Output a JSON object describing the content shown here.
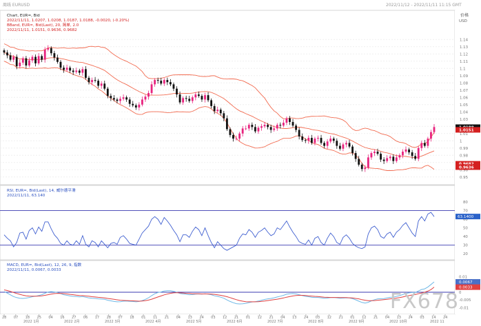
{
  "header": {
    "left_title": "周线 EURUSD",
    "right_title": "2022/11/12 - 2022/11/11 11:15 GMT"
  },
  "chart_data": [
    {
      "type": "candlestick",
      "panel": "price",
      "title_line": "Chart, EUR=, Bid",
      "ohlc_line": "2022/11/11, 1.0207, 1.0208, 1.0187, 1.0188, -0.0020, (-0.20%)",
      "indicator_line": "BBand, EUR=, Bid(Last), 20, 简单, 2.0",
      "indicator_values_line": "2022/11/11, 1.0151, 0.9636, 0.9682",
      "axis_label": "价格",
      "axis_unit": "USD",
      "y_ticks": [
        "1.14",
        "1.13",
        "1.12",
        "1.11",
        "1.1",
        "1.09",
        "1.08",
        "1.07",
        "1.06",
        "1.05",
        "1.04",
        "1.03",
        "1.02",
        "1.01",
        "1",
        "0.99",
        "0.98",
        "0.97",
        "0.96",
        "0.95"
      ],
      "ylim": [
        0.945,
        1.145
      ],
      "price_badges": [
        {
          "label": "1.0188",
          "value": 1.0188,
          "color": "#111111"
        },
        {
          "label": "1.0151",
          "value": 1.0151,
          "color": "#d42020"
        },
        {
          "label": "0.9682",
          "value": 0.9682,
          "color": "#d42020"
        },
        {
          "label": "0.9636",
          "value": 0.9636,
          "color": "#d42020"
        }
      ],
      "close": [
        1.122,
        1.118,
        1.112,
        1.116,
        1.103,
        1.108,
        1.114,
        1.104,
        1.111,
        1.116,
        1.107,
        1.117,
        1.112,
        1.126,
        1.128,
        1.121,
        1.115,
        1.109,
        1.101,
        1.098,
        1.101,
        1.097,
        1.095,
        1.097,
        1.094,
        1.099,
        1.087,
        1.081,
        1.084,
        1.083,
        1.076,
        1.079,
        1.072,
        1.062,
        1.059,
        1.057,
        1.055,
        1.058,
        1.06,
        1.057,
        1.051,
        1.049,
        1.046,
        1.05,
        1.057,
        1.061,
        1.066,
        1.078,
        1.084,
        1.083,
        1.079,
        1.084,
        1.081,
        1.078,
        1.072,
        1.064,
        1.053,
        1.059,
        1.058,
        1.055,
        1.06,
        1.064,
        1.062,
        1.057,
        1.063,
        1.056,
        1.048,
        1.041,
        1.043,
        1.038,
        1.031,
        1.016,
        1.008,
        1.003,
        1.003,
        1.01,
        1.017,
        1.017,
        1.022,
        1.019,
        1.013,
        1.018,
        1.02,
        1.022,
        1.019,
        1.015,
        1.017,
        1.022,
        1.021,
        1.025,
        1.031,
        1.026,
        1.021,
        1.015,
        1.006,
        1.001,
        1.0,
        1.004,
        0.997,
        1.003,
        1.004,
        0.997,
        0.993,
        0.999,
        1.003,
        1.0,
        0.993,
        0.989,
        0.995,
        0.997,
        0.992,
        0.983,
        0.975,
        0.967,
        0.961,
        0.963,
        0.977,
        0.983,
        0.985,
        0.982,
        0.974,
        0.972,
        0.976,
        0.978,
        0.972,
        0.977,
        0.98,
        0.985,
        0.988,
        0.984,
        0.979,
        0.975,
        0.99,
        0.997,
        0.993,
        1.003,
        1.012,
        1.019
      ]
    },
    {
      "type": "line",
      "panel": "rsi",
      "title_line": "RSI, EUR=, Bid(Last), 14, 威尔德平滑",
      "value_line": "2022/11/11, 63.140",
      "y_ticks": [
        "80",
        "70",
        "60",
        "50",
        "40",
        "30",
        "20"
      ],
      "levels": [
        70,
        30
      ],
      "ylim": [
        17,
        84
      ],
      "badge": {
        "label": "63.1400",
        "value": 63.14
      },
      "values": [
        42,
        38,
        35,
        28,
        33,
        44,
        45,
        37,
        47,
        50,
        43,
        51,
        46,
        57,
        57,
        49,
        42,
        38,
        32,
        30,
        35,
        31,
        30,
        35,
        31,
        41,
        31,
        28,
        35,
        33,
        28,
        35,
        31,
        27,
        32,
        33,
        31,
        39,
        41,
        37,
        32,
        31,
        30,
        37,
        44,
        48,
        52,
        60,
        63,
        60,
        54,
        62,
        58,
        53,
        47,
        42,
        34,
        42,
        42,
        39,
        46,
        51,
        48,
        41,
        50,
        41,
        33,
        27,
        34,
        30,
        26,
        24,
        26,
        28,
        30,
        38,
        43,
        42,
        48,
        45,
        39,
        45,
        47,
        50,
        45,
        41,
        43,
        50,
        48,
        53,
        58,
        51,
        45,
        40,
        34,
        32,
        31,
        36,
        30,
        38,
        40,
        33,
        30,
        38,
        44,
        40,
        33,
        31,
        39,
        42,
        38,
        32,
        29,
        27,
        26,
        28,
        43,
        50,
        52,
        48,
        40,
        38,
        43,
        45,
        39,
        45,
        48,
        53,
        56,
        50,
        44,
        40,
        58,
        63,
        58,
        66,
        68,
        63
      ]
    },
    {
      "type": "line",
      "panel": "macd",
      "title_line": "MACD, EUR=, Bid(Last), 12, 26, 9, 指数",
      "value_line": "2022/11/11, 0.0067, 0.0033",
      "y_ticks": [
        "0.01",
        "0.005",
        "0",
        "-0.005",
        "-0.01"
      ],
      "ylim": [
        -0.0125,
        0.0125
      ],
      "badges": [
        {
          "label": "0.0067",
          "value": 0.0067,
          "color": "#4a70c8"
        },
        {
          "label": "0.0033",
          "value": 0.0033,
          "color": "#e04040"
        }
      ],
      "series": [
        {
          "name": "MACD",
          "color": "#6fb8e6",
          "values": [
            0.0004,
            -0.0006,
            -0.0017,
            -0.0028,
            -0.0035,
            -0.0039,
            -0.004,
            -0.0038,
            -0.0034,
            -0.0029,
            -0.0026,
            -0.0021,
            -0.0016,
            -0.0007,
            0.0002,
            0.0004,
            0.0002,
            -0.0002,
            -0.0009,
            -0.0016,
            -0.002,
            -0.0024,
            -0.0027,
            -0.0028,
            -0.003,
            -0.0028,
            -0.0032,
            -0.0037,
            -0.0039,
            -0.004,
            -0.0043,
            -0.0044,
            -0.0046,
            -0.0052,
            -0.0056,
            -0.006,
            -0.0062,
            -0.0061,
            -0.0058,
            -0.0057,
            -0.0059,
            -0.006,
            -0.0062,
            -0.006,
            -0.0054,
            -0.0046,
            -0.0036,
            -0.0022,
            -0.001,
            -0.0002,
            0.0002,
            0.0008,
            0.001,
            0.001,
            0.0006,
            0.0,
            -0.0008,
            -0.0011,
            -0.0013,
            -0.0016,
            -0.0015,
            -0.0012,
            -0.0011,
            -0.0012,
            -0.001,
            -0.0012,
            -0.0016,
            -0.0023,
            -0.0027,
            -0.0032,
            -0.0039,
            -0.005,
            -0.006,
            -0.0068,
            -0.0074,
            -0.0076,
            -0.0075,
            -0.0072,
            -0.0067,
            -0.0063,
            -0.0061,
            -0.0057,
            -0.0052,
            -0.0047,
            -0.0043,
            -0.004,
            -0.0036,
            -0.0031,
            -0.0026,
            -0.002,
            -0.0013,
            -0.001,
            -0.0009,
            -0.0011,
            -0.0016,
            -0.0022,
            -0.0027,
            -0.0029,
            -0.0033,
            -0.0034,
            -0.0034,
            -0.0036,
            -0.0039,
            -0.0038,
            -0.0035,
            -0.0034,
            -0.0036,
            -0.0039,
            -0.0038,
            -0.0036,
            -0.0037,
            -0.0042,
            -0.0049,
            -0.0058,
            -0.0066,
            -0.007,
            -0.0065,
            -0.0056,
            -0.0048,
            -0.0043,
            -0.0042,
            -0.0041,
            -0.0037,
            -0.0033,
            -0.0032,
            -0.0027,
            -0.0022,
            -0.0015,
            -0.0008,
            -0.0004,
            -0.0002,
            -0.0002,
            0.0008,
            0.0018,
            0.0022,
            0.0034,
            0.005,
            0.0067
          ]
        },
        {
          "name": "Signal",
          "color": "#e04040",
          "values": [
            0.0015,
            0.0011,
            0.0005,
            -0.0002,
            -0.0008,
            -0.0014,
            -0.0019,
            -0.0023,
            -0.0025,
            -0.0026,
            -0.0026,
            -0.0025,
            -0.0023,
            -0.002,
            -0.0016,
            -0.0012,
            -0.0009,
            -0.0007,
            -0.0008,
            -0.0009,
            -0.0011,
            -0.0014,
            -0.0016,
            -0.0019,
            -0.0021,
            -0.0022,
            -0.0024,
            -0.0026,
            -0.0029,
            -0.0031,
            -0.0033,
            -0.0035,
            -0.0037,
            -0.004,
            -0.0043,
            -0.0046,
            -0.0049,
            -0.0052,
            -0.0053,
            -0.0054,
            -0.0055,
            -0.0056,
            -0.0057,
            -0.0058,
            -0.0057,
            -0.0055,
            -0.0051,
            -0.0045,
            -0.0038,
            -0.0031,
            -0.0024,
            -0.0017,
            -0.0012,
            -0.0007,
            -0.0004,
            -0.0003,
            -0.0004,
            -0.0005,
            -0.0007,
            -0.0008,
            -0.001,
            -0.001,
            -0.001,
            -0.0011,
            -0.0011,
            -0.0011,
            -0.0012,
            -0.0014,
            -0.0017,
            -0.002,
            -0.0024,
            -0.0029,
            -0.0035,
            -0.0042,
            -0.0048,
            -0.0054,
            -0.0058,
            -0.0061,
            -0.0062,
            -0.0062,
            -0.0062,
            -0.0061,
            -0.0059,
            -0.0057,
            -0.0054,
            -0.0051,
            -0.0048,
            -0.0045,
            -0.0041,
            -0.0037,
            -0.0032,
            -0.0028,
            -0.0024,
            -0.0021,
            -0.002,
            -0.002,
            -0.0021,
            -0.0023,
            -0.0025,
            -0.0027,
            -0.0028,
            -0.003,
            -0.0032,
            -0.0033,
            -0.0034,
            -0.0034,
            -0.0034,
            -0.0035,
            -0.0035,
            -0.0035,
            -0.0036,
            -0.0037,
            -0.004,
            -0.0043,
            -0.0048,
            -0.0052,
            -0.0055,
            -0.0055,
            -0.0054,
            -0.0052,
            -0.005,
            -0.0048,
            -0.0046,
            -0.0043,
            -0.0041,
            -0.0038,
            -0.0035,
            -0.0031,
            -0.0026,
            -0.0022,
            -0.0018,
            -0.0015,
            -0.001,
            -0.0005,
            0.0,
            0.0007,
            0.0017,
            0.0033
          ]
        }
      ]
    }
  ],
  "x_axis": {
    "ticks": [
      "28",
      "07",
      "18",
      "25",
      "04",
      "16",
      "27",
      "06",
      "17",
      "28",
      "07",
      "18",
      "01",
      "11",
      "21",
      "04",
      "13",
      "24",
      "03",
      "12",
      "21",
      "01",
      "12",
      "21",
      "04",
      "13",
      "24",
      "03",
      "12",
      "21",
      "01",
      "12",
      "21",
      "04",
      "13",
      "24",
      "03",
      "14",
      "24"
    ],
    "period_labels": [
      "2022 1月",
      "2022 2月",
      "2022 3月",
      "2022 4月",
      "2022 5月",
      "2022 6月",
      "2022 7月",
      "2022 8月",
      "2022 9月",
      "2022 10月",
      "2022 11"
    ]
  },
  "watermark": "FX678",
  "colors": {
    "up": "#e8237e",
    "down": "#111111",
    "band": "#f26a4f",
    "rsi": "#3f5fd0",
    "level": "#3a3ab0",
    "badge_blue": "#2a62c9"
  }
}
